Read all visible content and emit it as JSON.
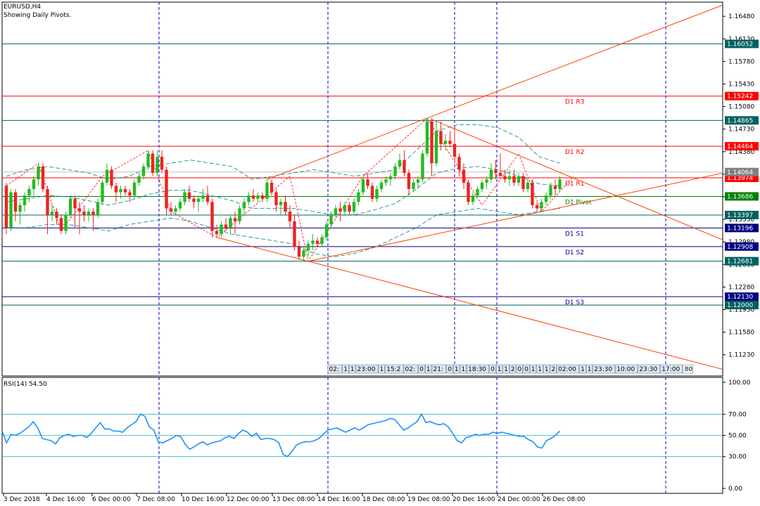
{
  "header": {
    "symbol_title": "EURUSD,H4",
    "subtitle": "Showing Daily Pivots."
  },
  "chart_data": {
    "type": "candlestick",
    "ylim": [
      1.109,
      1.167
    ],
    "y_ticks": [
      "1.16480",
      "1.16130",
      "1.15780",
      "1.15430",
      "1.15080",
      "1.14730",
      "1.14380",
      "1.14030",
      "1.13680",
      "1.13330",
      "1.12980",
      "1.12630",
      "1.12280",
      "1.11930",
      "1.11580",
      "1.11230"
    ],
    "x_labels": [
      "3 Dec 2018",
      "4 Dec 16:00",
      "6 Dec 00:00",
      "7 Dec 08:00",
      "10 Dec 16:00",
      "12 Dec 00:00",
      "13 Dec 08:00",
      "14 Dec 16:00",
      "18 Dec 08:00",
      "19 Dec 08:00",
      "20 Dec 16:00",
      "24 Dec 00:00",
      "26 Dec 08:00"
    ],
    "session_separators": [
      "7 Dec 08:00",
      "14 Dec 16:00",
      "20 Dec 16:00",
      "24 Dec 00:00",
      "future"
    ],
    "pivot_levels": [
      {
        "label": "D1 R3",
        "value": 1.15242,
        "box": "1.15242",
        "color": "#ff0000"
      },
      {
        "label": "D1 R2",
        "value": 1.14464,
        "box": "1.14464",
        "color": "#ff0000"
      },
      {
        "label": "D1 R1",
        "value": 1.13974,
        "box": "1.13974",
        "color": "#ff0000"
      },
      {
        "label": "D1 Pivot",
        "value": 1.13686,
        "box": "1.13686",
        "color": "#008000"
      },
      {
        "label": "D1 S1",
        "value": 1.13196,
        "box": "1.13196",
        "color": "#000080"
      },
      {
        "label": "D1 S2",
        "value": 1.12908,
        "box": "1.12908",
        "color": "#000080"
      },
      {
        "label": "D1 S3",
        "value": 1.1213,
        "box": "1.12130",
        "color": "#000080"
      }
    ],
    "extra_levels": [
      {
        "value": 1.16052,
        "box": "1.16052",
        "color": "#006060"
      },
      {
        "value": 1.14865,
        "box": "1.14865",
        "color": "#006060"
      },
      {
        "value": 1.13397,
        "box": "1.13397",
        "color": "#006060"
      },
      {
        "value": 1.12681,
        "box": "1.12681",
        "color": "#006060"
      },
      {
        "value": 1.12,
        "box": "1.12000",
        "color": "#006060"
      }
    ],
    "current_price": {
      "value": 1.14064,
      "box": "1.14064",
      "color": "#808080"
    },
    "candles": [
      {
        "o": 1.1385,
        "h": 1.139,
        "l": 1.131,
        "c": 1.132
      },
      {
        "o": 1.132,
        "h": 1.138,
        "l": 1.1315,
        "c": 1.1375
      },
      {
        "o": 1.1375,
        "h": 1.138,
        "l": 1.133,
        "c": 1.1345
      },
      {
        "o": 1.1345,
        "h": 1.136,
        "l": 1.1325,
        "c": 1.1355
      },
      {
        "o": 1.1355,
        "h": 1.1375,
        "l": 1.1345,
        "c": 1.137
      },
      {
        "o": 1.137,
        "h": 1.1385,
        "l": 1.136,
        "c": 1.138
      },
      {
        "o": 1.138,
        "h": 1.14,
        "l": 1.137,
        "c": 1.1395
      },
      {
        "o": 1.1395,
        "h": 1.142,
        "l": 1.1385,
        "c": 1.1415
      },
      {
        "o": 1.1415,
        "h": 1.142,
        "l": 1.1375,
        "c": 1.138
      },
      {
        "o": 1.138,
        "h": 1.1385,
        "l": 1.131,
        "c": 1.134
      },
      {
        "o": 1.134,
        "h": 1.1355,
        "l": 1.133,
        "c": 1.1345
      },
      {
        "o": 1.1345,
        "h": 1.135,
        "l": 1.1325,
        "c": 1.1335
      },
      {
        "o": 1.1335,
        "h": 1.134,
        "l": 1.131,
        "c": 1.1315
      },
      {
        "o": 1.1315,
        "h": 1.1345,
        "l": 1.131,
        "c": 1.134
      },
      {
        "o": 1.134,
        "h": 1.137,
        "l": 1.1335,
        "c": 1.1365
      },
      {
        "o": 1.1365,
        "h": 1.137,
        "l": 1.132,
        "c": 1.135
      },
      {
        "o": 1.135,
        "h": 1.136,
        "l": 1.131,
        "c": 1.1345
      },
      {
        "o": 1.1345,
        "h": 1.1355,
        "l": 1.133,
        "c": 1.134
      },
      {
        "o": 1.134,
        "h": 1.135,
        "l": 1.133,
        "c": 1.1345
      },
      {
        "o": 1.1345,
        "h": 1.135,
        "l": 1.1315,
        "c": 1.134
      },
      {
        "o": 1.134,
        "h": 1.1365,
        "l": 1.1335,
        "c": 1.136
      },
      {
        "o": 1.136,
        "h": 1.1395,
        "l": 1.1355,
        "c": 1.139
      },
      {
        "o": 1.139,
        "h": 1.142,
        "l": 1.1385,
        "c": 1.141
      },
      {
        "o": 1.141,
        "h": 1.1415,
        "l": 1.138,
        "c": 1.1385
      },
      {
        "o": 1.1385,
        "h": 1.139,
        "l": 1.136,
        "c": 1.1375
      },
      {
        "o": 1.1375,
        "h": 1.1385,
        "l": 1.1365,
        "c": 1.138
      },
      {
        "o": 1.138,
        "h": 1.1385,
        "l": 1.137,
        "c": 1.1375
      },
      {
        "o": 1.1375,
        "h": 1.138,
        "l": 1.136,
        "c": 1.137
      },
      {
        "o": 1.137,
        "h": 1.1395,
        "l": 1.1365,
        "c": 1.139
      },
      {
        "o": 1.139,
        "h": 1.1405,
        "l": 1.1385,
        "c": 1.14
      },
      {
        "o": 1.14,
        "h": 1.142,
        "l": 1.1395,
        "c": 1.1415
      },
      {
        "o": 1.1415,
        "h": 1.144,
        "l": 1.141,
        "c": 1.1435
      },
      {
        "o": 1.1435,
        "h": 1.144,
        "l": 1.14,
        "c": 1.1405
      },
      {
        "o": 1.1405,
        "h": 1.144,
        "l": 1.14,
        "c": 1.143
      },
      {
        "o": 1.143,
        "h": 1.144,
        "l": 1.1405,
        "c": 1.141
      },
      {
        "o": 1.141,
        "h": 1.1415,
        "l": 1.134,
        "c": 1.135
      },
      {
        "o": 1.135,
        "h": 1.136,
        "l": 1.134,
        "c": 1.1345
      },
      {
        "o": 1.1345,
        "h": 1.1355,
        "l": 1.134,
        "c": 1.135
      },
      {
        "o": 1.135,
        "h": 1.1365,
        "l": 1.1345,
        "c": 1.136
      },
      {
        "o": 1.136,
        "h": 1.138,
        "l": 1.1355,
        "c": 1.1375
      },
      {
        "o": 1.1375,
        "h": 1.1385,
        "l": 1.136,
        "c": 1.1365
      },
      {
        "o": 1.1365,
        "h": 1.137,
        "l": 1.135,
        "c": 1.136
      },
      {
        "o": 1.136,
        "h": 1.137,
        "l": 1.1345,
        "c": 1.1365
      },
      {
        "o": 1.1365,
        "h": 1.138,
        "l": 1.136,
        "c": 1.137
      },
      {
        "o": 1.137,
        "h": 1.1385,
        "l": 1.1355,
        "c": 1.136
      },
      {
        "o": 1.136,
        "h": 1.1365,
        "l": 1.1305,
        "c": 1.1315
      },
      {
        "o": 1.1315,
        "h": 1.1325,
        "l": 1.1305,
        "c": 1.131
      },
      {
        "o": 1.131,
        "h": 1.133,
        "l": 1.1305,
        "c": 1.1325
      },
      {
        "o": 1.1325,
        "h": 1.1335,
        "l": 1.1315,
        "c": 1.132
      },
      {
        "o": 1.132,
        "h": 1.134,
        "l": 1.131,
        "c": 1.1335
      },
      {
        "o": 1.1335,
        "h": 1.1345,
        "l": 1.131,
        "c": 1.133
      },
      {
        "o": 1.133,
        "h": 1.1355,
        "l": 1.1325,
        "c": 1.135
      },
      {
        "o": 1.135,
        "h": 1.1365,
        "l": 1.134,
        "c": 1.136
      },
      {
        "o": 1.136,
        "h": 1.1375,
        "l": 1.1355,
        "c": 1.137
      },
      {
        "o": 1.137,
        "h": 1.138,
        "l": 1.136,
        "c": 1.1365
      },
      {
        "o": 1.1365,
        "h": 1.1375,
        "l": 1.136,
        "c": 1.137
      },
      {
        "o": 1.137,
        "h": 1.1375,
        "l": 1.136,
        "c": 1.1365
      },
      {
        "o": 1.1365,
        "h": 1.1395,
        "l": 1.136,
        "c": 1.139
      },
      {
        "o": 1.139,
        "h": 1.1395,
        "l": 1.137,
        "c": 1.1375
      },
      {
        "o": 1.1375,
        "h": 1.138,
        "l": 1.1345,
        "c": 1.1355
      },
      {
        "o": 1.1355,
        "h": 1.1365,
        "l": 1.134,
        "c": 1.136
      },
      {
        "o": 1.136,
        "h": 1.137,
        "l": 1.134,
        "c": 1.1345
      },
      {
        "o": 1.1345,
        "h": 1.1355,
        "l": 1.132,
        "c": 1.133
      },
      {
        "o": 1.133,
        "h": 1.134,
        "l": 1.1285,
        "c": 1.129
      },
      {
        "o": 1.129,
        "h": 1.13,
        "l": 1.127,
        "c": 1.1275
      },
      {
        "o": 1.1275,
        "h": 1.129,
        "l": 1.1268,
        "c": 1.1285
      },
      {
        "o": 1.1285,
        "h": 1.13,
        "l": 1.1275,
        "c": 1.1295
      },
      {
        "o": 1.1295,
        "h": 1.131,
        "l": 1.1285,
        "c": 1.13
      },
      {
        "o": 1.13,
        "h": 1.1305,
        "l": 1.129,
        "c": 1.1295
      },
      {
        "o": 1.1295,
        "h": 1.131,
        "l": 1.129,
        "c": 1.1305
      },
      {
        "o": 1.1305,
        "h": 1.133,
        "l": 1.13,
        "c": 1.1325
      },
      {
        "o": 1.1325,
        "h": 1.1345,
        "l": 1.132,
        "c": 1.134
      },
      {
        "o": 1.134,
        "h": 1.1355,
        "l": 1.1335,
        "c": 1.135
      },
      {
        "o": 1.135,
        "h": 1.136,
        "l": 1.133,
        "c": 1.1345
      },
      {
        "o": 1.1345,
        "h": 1.136,
        "l": 1.134,
        "c": 1.1355
      },
      {
        "o": 1.1355,
        "h": 1.136,
        "l": 1.134,
        "c": 1.1345
      },
      {
        "o": 1.1345,
        "h": 1.1365,
        "l": 1.134,
        "c": 1.136
      },
      {
        "o": 1.136,
        "h": 1.138,
        "l": 1.1355,
        "c": 1.1375
      },
      {
        "o": 1.1375,
        "h": 1.14,
        "l": 1.137,
        "c": 1.1395
      },
      {
        "o": 1.1395,
        "h": 1.1405,
        "l": 1.138,
        "c": 1.1385
      },
      {
        "o": 1.1385,
        "h": 1.139,
        "l": 1.136,
        "c": 1.1365
      },
      {
        "o": 1.1365,
        "h": 1.1385,
        "l": 1.136,
        "c": 1.138
      },
      {
        "o": 1.138,
        "h": 1.1395,
        "l": 1.1375,
        "c": 1.139
      },
      {
        "o": 1.139,
        "h": 1.14,
        "l": 1.1385,
        "c": 1.1395
      },
      {
        "o": 1.1395,
        "h": 1.1405,
        "l": 1.1385,
        "c": 1.14
      },
      {
        "o": 1.14,
        "h": 1.142,
        "l": 1.1395,
        "c": 1.1415
      },
      {
        "o": 1.1415,
        "h": 1.1435,
        "l": 1.141,
        "c": 1.1425
      },
      {
        "o": 1.1425,
        "h": 1.144,
        "l": 1.14,
        "c": 1.1405
      },
      {
        "o": 1.1405,
        "h": 1.141,
        "l": 1.137,
        "c": 1.138
      },
      {
        "o": 1.138,
        "h": 1.1395,
        "l": 1.1375,
        "c": 1.139
      },
      {
        "o": 1.139,
        "h": 1.14,
        "l": 1.138,
        "c": 1.1395
      },
      {
        "o": 1.1395,
        "h": 1.144,
        "l": 1.139,
        "c": 1.1435
      },
      {
        "o": 1.1435,
        "h": 1.149,
        "l": 1.143,
        "c": 1.1485
      },
      {
        "o": 1.1485,
        "h": 1.149,
        "l": 1.14,
        "c": 1.142
      },
      {
        "o": 1.142,
        "h": 1.1485,
        "l": 1.1415,
        "c": 1.147
      },
      {
        "o": 1.147,
        "h": 1.1485,
        "l": 1.144,
        "c": 1.145
      },
      {
        "o": 1.145,
        "h": 1.1465,
        "l": 1.144,
        "c": 1.1455
      },
      {
        "o": 1.1455,
        "h": 1.147,
        "l": 1.1445,
        "c": 1.145
      },
      {
        "o": 1.145,
        "h": 1.1475,
        "l": 1.142,
        "c": 1.143
      },
      {
        "o": 1.143,
        "h": 1.1435,
        "l": 1.14,
        "c": 1.141
      },
      {
        "o": 1.141,
        "h": 1.142,
        "l": 1.138,
        "c": 1.139
      },
      {
        "o": 1.139,
        "h": 1.1395,
        "l": 1.1355,
        "c": 1.136
      },
      {
        "o": 1.136,
        "h": 1.1375,
        "l": 1.1355,
        "c": 1.137
      },
      {
        "o": 1.137,
        "h": 1.1385,
        "l": 1.1365,
        "c": 1.138
      },
      {
        "o": 1.138,
        "h": 1.1395,
        "l": 1.1375,
        "c": 1.139
      },
      {
        "o": 1.139,
        "h": 1.14,
        "l": 1.138,
        "c": 1.1395
      },
      {
        "o": 1.1395,
        "h": 1.142,
        "l": 1.139,
        "c": 1.141
      },
      {
        "o": 1.141,
        "h": 1.1425,
        "l": 1.1395,
        "c": 1.1405
      },
      {
        "o": 1.1405,
        "h": 1.1435,
        "l": 1.14,
        "c": 1.14
      },
      {
        "o": 1.14,
        "h": 1.141,
        "l": 1.139,
        "c": 1.1395
      },
      {
        "o": 1.1395,
        "h": 1.141,
        "l": 1.1385,
        "c": 1.14
      },
      {
        "o": 1.14,
        "h": 1.141,
        "l": 1.1385,
        "c": 1.139
      },
      {
        "o": 1.139,
        "h": 1.1405,
        "l": 1.1385,
        "c": 1.14
      },
      {
        "o": 1.14,
        "h": 1.1405,
        "l": 1.1375,
        "c": 1.138
      },
      {
        "o": 1.138,
        "h": 1.1395,
        "l": 1.1375,
        "c": 1.139
      },
      {
        "o": 1.139,
        "h": 1.1395,
        "l": 1.135,
        "c": 1.1355
      },
      {
        "o": 1.1355,
        "h": 1.136,
        "l": 1.1345,
        "c": 1.135
      },
      {
        "o": 1.135,
        "h": 1.1365,
        "l": 1.1345,
        "c": 1.136
      },
      {
        "o": 1.136,
        "h": 1.1375,
        "l": 1.1355,
        "c": 1.137
      },
      {
        "o": 1.137,
        "h": 1.139,
        "l": 1.1365,
        "c": 1.1385
      },
      {
        "o": 1.1385,
        "h": 1.1395,
        "l": 1.137,
        "c": 1.138
      },
      {
        "o": 1.138,
        "h": 1.14,
        "l": 1.1375,
        "c": 1.1395
      }
    ],
    "bands": {
      "upper": [
        1.14,
        1.141,
        1.1415,
        1.141,
        1.1405,
        1.1395,
        1.14,
        1.1415,
        1.142,
        1.1425,
        1.142,
        1.1415,
        1.1395,
        1.14,
        1.1405,
        1.141,
        1.1405,
        1.14,
        1.1405,
        1.141,
        1.144,
        1.147,
        1.148,
        1.148,
        1.1475,
        1.146,
        1.143,
        1.142
      ],
      "lower": [
        1.132,
        1.132,
        1.1325,
        1.1325,
        1.132,
        1.1315,
        1.1325,
        1.133,
        1.1335,
        1.133,
        1.132,
        1.131,
        1.1305,
        1.13,
        1.1295,
        1.128,
        1.1275,
        1.128,
        1.129,
        1.1305,
        1.132,
        1.134,
        1.1345,
        1.135,
        1.1345,
        1.134,
        1.1345,
        1.135
      ],
      "middle": [
        1.136,
        1.1365,
        1.137,
        1.1368,
        1.1362,
        1.1355,
        1.1362,
        1.1372,
        1.1378,
        1.1378,
        1.137,
        1.1362,
        1.135,
        1.135,
        1.135,
        1.1345,
        1.134,
        1.134,
        1.1348,
        1.1358,
        1.138,
        1.1405,
        1.1412,
        1.1415,
        1.141,
        1.14,
        1.1388,
        1.1385
      ]
    },
    "zigzag": [
      [
        0,
        1.1385
      ],
      [
        7,
        1.142
      ],
      [
        12,
        1.1315
      ],
      [
        21,
        1.14
      ],
      [
        31,
        1.144
      ],
      [
        36,
        1.1345
      ],
      [
        46,
        1.1305
      ],
      [
        62,
        1.14
      ],
      [
        66,
        1.1268
      ],
      [
        78,
        1.14
      ],
      [
        92,
        1.149
      ],
      [
        104,
        1.1355
      ],
      [
        112,
        1.1435
      ],
      [
        117,
        1.1345
      ],
      [
        124,
        1.14
      ]
    ],
    "trendlines": [
      {
        "i1": 46,
        "v1": 1.1305,
        "i2": 66,
        "v2": 1.1268,
        "ext": 160,
        "color": "#ff4000"
      },
      {
        "i1": 66,
        "v1": 1.1268,
        "i2": 117,
        "v2": 1.1345,
        "ext": 160,
        "color": "#ff4000"
      },
      {
        "i1": 57,
        "v1": 1.1395,
        "i2": 92,
        "v2": 1.149,
        "ext": 160,
        "color": "#ff4000"
      },
      {
        "i1": 93,
        "v1": 1.1488,
        "i2": 124,
        "v2": 1.1397,
        "ext": 160,
        "color": "#ff4000"
      }
    ],
    "time_labels": [
      "02:",
      "1",
      "1",
      "23:00",
      "1",
      "15:2",
      "02:",
      "0",
      "1",
      "21:",
      "0",
      "1",
      "1",
      "18:30",
      "0",
      "1",
      "1",
      "2",
      "0",
      "0",
      "1",
      "1",
      "1",
      "2",
      "02:00",
      "1",
      "1",
      "23:30",
      "10:00",
      "23:30",
      "17:00"
    ],
    "time_label_tail": "80"
  },
  "rsi": {
    "label": "RSI(14) 54.50",
    "ylim": [
      0,
      100
    ],
    "ticks": [
      "100.00",
      "70.00",
      "50.00",
      "30.00",
      "0.00"
    ],
    "levels": [
      70,
      50,
      30
    ],
    "values": [
      54,
      43,
      51,
      50,
      52,
      55,
      58,
      63,
      57,
      47,
      46,
      45,
      42,
      48,
      50,
      51,
      49,
      50,
      50,
      48,
      52,
      57,
      62,
      56,
      56,
      54,
      54,
      53,
      57,
      60,
      63,
      70,
      68,
      58,
      55,
      44,
      43,
      45,
      47,
      50,
      49,
      42,
      37,
      39,
      42,
      44,
      41,
      43,
      44,
      45,
      48,
      49,
      47,
      52,
      55,
      53,
      49,
      52,
      46,
      47,
      47,
      46,
      43,
      32,
      30,
      35,
      41,
      43,
      44,
      44,
      45,
      47,
      51,
      55,
      56,
      57,
      55,
      53,
      55,
      57,
      55,
      57,
      60,
      61,
      62,
      63,
      64,
      66,
      65,
      60,
      55,
      57,
      60,
      63,
      70,
      62,
      63,
      61,
      60,
      61,
      58,
      52,
      45,
      43,
      48,
      49,
      51,
      50,
      51,
      51,
      53,
      52,
      53,
      52,
      51,
      50,
      49,
      49,
      46,
      44,
      39,
      38,
      45,
      47,
      50,
      54
    ]
  }
}
